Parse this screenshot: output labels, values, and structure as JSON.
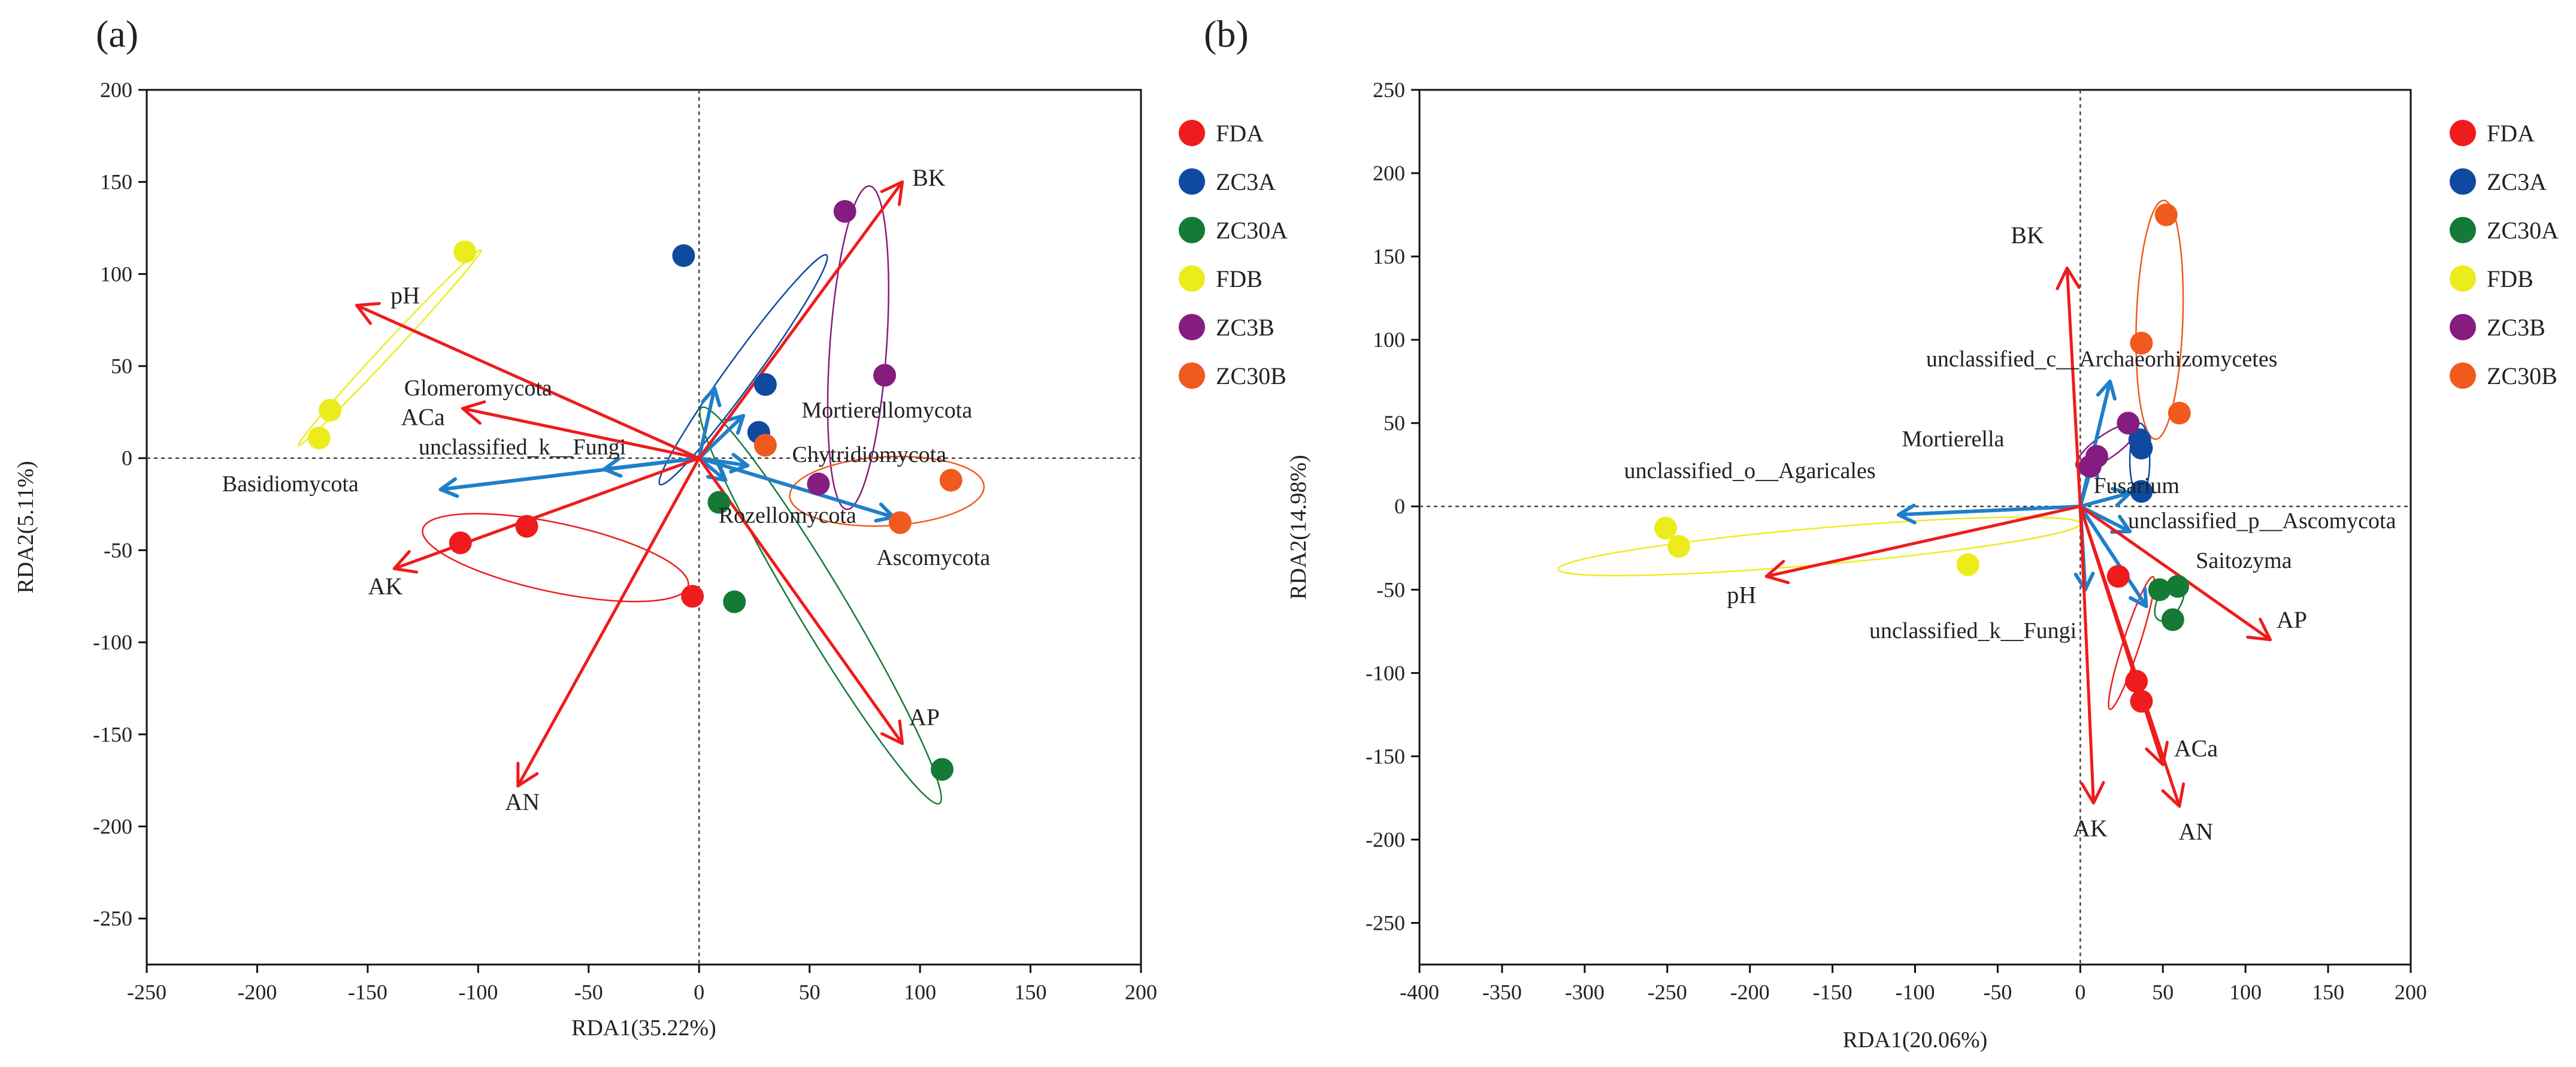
{
  "colors": {
    "env": "#ee1c1c",
    "species": "#1f7fc9",
    "axis": "#111111",
    "FDA": "#ee1c1c",
    "ZC3A": "#0f4aa0",
    "ZC30A": "#157a36",
    "FDB": "#ecec1c",
    "ZC3B": "#861c80",
    "ZC30B": "#f05a1e"
  },
  "chart_data": [
    {
      "type": "scatter",
      "panel": "(a)",
      "xlabel": "RDA1(35.22%)",
      "ylabel": "RDA2(5.11%)",
      "xlim": [
        -250,
        200
      ],
      "ylim": [
        -275,
        200
      ],
      "xticks": [
        -250,
        -200,
        -150,
        -100,
        -50,
        0,
        50,
        100,
        150,
        200
      ],
      "yticks": [
        -250,
        -200,
        -150,
        -100,
        -50,
        0,
        50,
        100,
        150,
        200
      ],
      "legend": [
        "FDA",
        "ZC3A",
        "ZC30A",
        "FDB",
        "ZC3B",
        "ZC30B"
      ],
      "points": [
        {
          "group": "FDA",
          "x": -108,
          "y": -46
        },
        {
          "group": "FDA",
          "x": -78,
          "y": -37
        },
        {
          "group": "FDA",
          "x": -3,
          "y": -75
        },
        {
          "group": "ZC3A",
          "x": -7,
          "y": 110
        },
        {
          "group": "ZC3A",
          "x": 30,
          "y": 40
        },
        {
          "group": "ZC3A",
          "x": 27,
          "y": 14
        },
        {
          "group": "ZC30A",
          "x": 9,
          "y": -24
        },
        {
          "group": "ZC30A",
          "x": 16,
          "y": -78
        },
        {
          "group": "ZC30A",
          "x": 110,
          "y": -169
        },
        {
          "group": "FDB",
          "x": -106,
          "y": 112
        },
        {
          "group": "FDB",
          "x": -167,
          "y": 26
        },
        {
          "group": "FDB",
          "x": -172,
          "y": 11
        },
        {
          "group": "ZC3B",
          "x": 66,
          "y": 134
        },
        {
          "group": "ZC3B",
          "x": 84,
          "y": 45
        },
        {
          "group": "ZC3B",
          "x": 54,
          "y": -14
        },
        {
          "group": "ZC30B",
          "x": 30,
          "y": 7
        },
        {
          "group": "ZC30B",
          "x": 114,
          "y": -12
        },
        {
          "group": "ZC30B",
          "x": 91,
          "y": -35
        }
      ],
      "ellipses": [
        {
          "group": "FDA",
          "cx": -65,
          "cy": -54,
          "rx": 67,
          "ry": 17,
          "angle": -12
        },
        {
          "group": "ZC3A",
          "cx": 20,
          "cy": 48,
          "rx": 70,
          "ry": 7,
          "angle": 54
        },
        {
          "group": "ZC30A",
          "cx": 55,
          "cy": -80,
          "rx": 114,
          "ry": 12,
          "angle": -59
        },
        {
          "group": "FDB",
          "cx": -140,
          "cy": 60,
          "rx": 66,
          "ry": 3,
          "angle": 47
        },
        {
          "group": "ZC3B",
          "cx": 72,
          "cy": 60,
          "rx": 80,
          "ry": 14,
          "angle": 86
        },
        {
          "group": "ZC30B",
          "cx": 85,
          "cy": -18,
          "rx": 48,
          "ry": 17,
          "angle": 3
        }
      ],
      "env_vectors": [
        {
          "name": "BK",
          "x": 92,
          "y": 150,
          "lx": 104,
          "ly": 148
        },
        {
          "name": "pH",
          "x": -155,
          "y": 83,
          "lx": -133,
          "ly": 84
        },
        {
          "name": "ACa",
          "x": -107,
          "y": 27,
          "lx": -125,
          "ly": 18
        },
        {
          "name": "AK",
          "x": -138,
          "y": -60,
          "lx": -142,
          "ly": -74
        },
        {
          "name": "AN",
          "x": -82,
          "y": -178,
          "lx": -80,
          "ly": -191
        },
        {
          "name": "AP",
          "x": 92,
          "y": -155,
          "lx": 102,
          "ly": -145
        }
      ],
      "species_vectors": [
        {
          "name": "Glomeromycota",
          "x": 20,
          "y": 23,
          "lx": -100,
          "ly": 34
        },
        {
          "name": "unclassified_k__Fungi",
          "x": -43,
          "y": -6,
          "lx": -80,
          "ly": 2
        },
        {
          "name": "Basidiomycota",
          "x": -117,
          "y": -17,
          "lx": -185,
          "ly": -18
        },
        {
          "name": "Mortierellomycota",
          "x": 7,
          "y": 38,
          "lx": 85,
          "ly": 22
        },
        {
          "name": "Chytridiomycota",
          "x": 22,
          "y": -4,
          "lx": 77,
          "ly": -2
        },
        {
          "name": "Rozellomycota",
          "x": 12,
          "y": -12,
          "lx": 40,
          "ly": -35
        },
        {
          "name": "Ascomycota",
          "x": 88,
          "y": -32,
          "lx": 106,
          "ly": -58
        }
      ]
    },
    {
      "type": "scatter",
      "panel": "(b)",
      "xlabel": "RDA1(20.06%)",
      "ylabel": "RDA2(14.98%)",
      "xlim": [
        -400,
        200
      ],
      "ylim": [
        -275,
        250
      ],
      "xticks": [
        -400,
        -350,
        -300,
        -250,
        -200,
        -150,
        -100,
        -50,
        0,
        50,
        100,
        150,
        200
      ],
      "yticks": [
        -250,
        -200,
        -150,
        -100,
        -50,
        0,
        50,
        100,
        150,
        200,
        250
      ],
      "legend": [
        "FDA",
        "ZC3A",
        "ZC30A",
        "FDB",
        "ZC3B",
        "ZC30B"
      ],
      "points": [
        {
          "group": "FDA",
          "x": 23,
          "y": -42
        },
        {
          "group": "FDA",
          "x": 34,
          "y": -105
        },
        {
          "group": "FDA",
          "x": 37,
          "y": -117
        },
        {
          "group": "ZC3A",
          "x": 36,
          "y": 40
        },
        {
          "group": "ZC3A",
          "x": 37,
          "y": 35
        },
        {
          "group": "ZC3A",
          "x": 37,
          "y": 9
        },
        {
          "group": "ZC30A",
          "x": 48,
          "y": -50
        },
        {
          "group": "ZC30A",
          "x": 59,
          "y": -48
        },
        {
          "group": "ZC30A",
          "x": 56,
          "y": -68
        },
        {
          "group": "FDB",
          "x": -251,
          "y": -13
        },
        {
          "group": "FDB",
          "x": -243,
          "y": -24
        },
        {
          "group": "FDB",
          "x": -68,
          "y": -35
        },
        {
          "group": "ZC3B",
          "x": 29,
          "y": 50
        },
        {
          "group": "ZC3B",
          "x": 10,
          "y": 30
        },
        {
          "group": "ZC3B",
          "x": 6,
          "y": 24
        },
        {
          "group": "ZC30B",
          "x": 52,
          "y": 175
        },
        {
          "group": "ZC30B",
          "x": 37,
          "y": 98
        },
        {
          "group": "ZC30B",
          "x": 60,
          "y": 56
        }
      ],
      "ellipses": [
        {
          "group": "FDB",
          "cx": -158,
          "cy": -24,
          "rx": 158,
          "ry": 11,
          "angle": 5
        },
        {
          "group": "ZC30B",
          "cx": 48,
          "cy": 112,
          "rx": 72,
          "ry": 14,
          "angle": 88
        },
        {
          "group": "ZC3A",
          "cx": 36,
          "cy": 28,
          "rx": 22,
          "ry": 6,
          "angle": 90
        },
        {
          "group": "ZC3B",
          "cx": 16,
          "cy": 36,
          "rx": 22,
          "ry": 7,
          "angle": 35
        },
        {
          "group": "FDA",
          "cx": 31,
          "cy": -82,
          "rx": 42,
          "ry": 5,
          "angle": 72
        },
        {
          "group": "ZC30A",
          "cx": 54,
          "cy": -57,
          "rx": 13,
          "ry": 7,
          "angle": 60
        }
      ],
      "env_vectors": [
        {
          "name": "BK",
          "x": -8,
          "y": 143,
          "lx": -32,
          "ly": 158
        },
        {
          "name": "AP",
          "x": 115,
          "y": -80,
          "lx": 128,
          "ly": -73
        },
        {
          "name": "ACa",
          "x": 50,
          "y": -155,
          "lx": 70,
          "ly": -150
        },
        {
          "name": "AN",
          "x": 60,
          "y": -180,
          "lx": 70,
          "ly": -200
        },
        {
          "name": "AK",
          "x": 8,
          "y": -178,
          "lx": 6,
          "ly": -198
        },
        {
          "name": "pH",
          "x": -190,
          "y": -42,
          "lx": -205,
          "ly": -58
        }
      ],
      "species_vectors": [
        {
          "name": "unclassified_c__Archaeorhizomycetes",
          "x": 18,
          "y": 75,
          "lx": 13,
          "ly": 84
        },
        {
          "name": "Mortierella",
          "x": 8,
          "y": 28,
          "lx": -77,
          "ly": 36
        },
        {
          "name": "unclassified_o__Agaricales",
          "x": -110,
          "y": -5,
          "lx": -200,
          "ly": 17
        },
        {
          "name": "Fusarium",
          "x": 30,
          "y": 8,
          "lx": 34,
          "ly": 8
        },
        {
          "name": "unclassified_p__Ascomycota",
          "x": 30,
          "y": -15,
          "lx": 110,
          "ly": -13
        },
        {
          "name": "Saitozyma",
          "x": 40,
          "y": -60,
          "lx": 99,
          "ly": -37
        },
        {
          "name": "unclassified_k__Fungi",
          "x": 3,
          "y": -50,
          "lx": -65,
          "ly": -79
        }
      ]
    }
  ]
}
